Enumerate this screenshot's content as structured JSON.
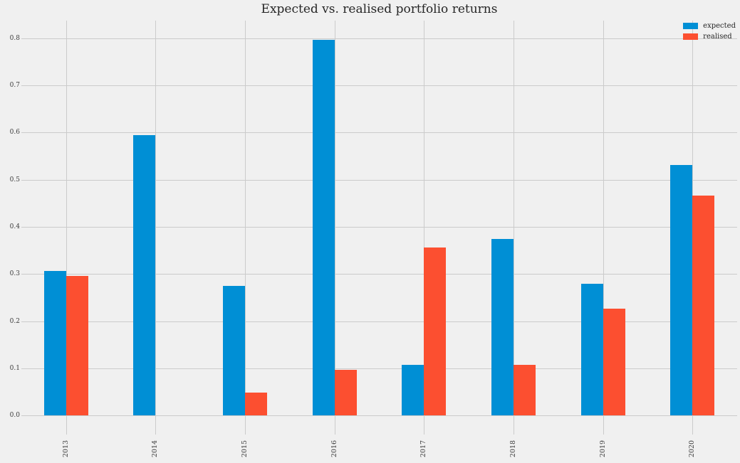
{
  "chart_data": {
    "type": "bar",
    "title": "Expected vs. realised portfolio returns",
    "categories": [
      "2013",
      "2014",
      "2015",
      "2016",
      "2017",
      "2018",
      "2019",
      "2020"
    ],
    "series": [
      {
        "name": "expected",
        "color": "#008fd5",
        "values": [
          0.307,
          0.594,
          0.275,
          0.797,
          0.107,
          0.374,
          0.28,
          0.531
        ]
      },
      {
        "name": "realised",
        "color": "#fc4f30",
        "values": [
          0.296,
          0.0,
          0.049,
          0.097,
          0.356,
          0.107,
          0.227,
          0.466
        ]
      }
    ],
    "xlabel": "",
    "ylabel": "",
    "yticks": [
      0.0,
      0.1,
      0.2,
      0.3,
      0.4,
      0.5,
      0.6,
      0.7,
      0.8
    ],
    "ytick_labels": [
      "0.0",
      "0.1",
      "0.2",
      "0.3",
      "0.4",
      "0.5",
      "0.6",
      "0.7",
      "0.8"
    ],
    "ylim": [
      -0.04,
      0.837
    ],
    "grid": true,
    "legend_position": "upper right",
    "x_tick_label_rotation": 90,
    "background_color": "#f0f0f0",
    "gridline_color": "#cbcbcb"
  }
}
